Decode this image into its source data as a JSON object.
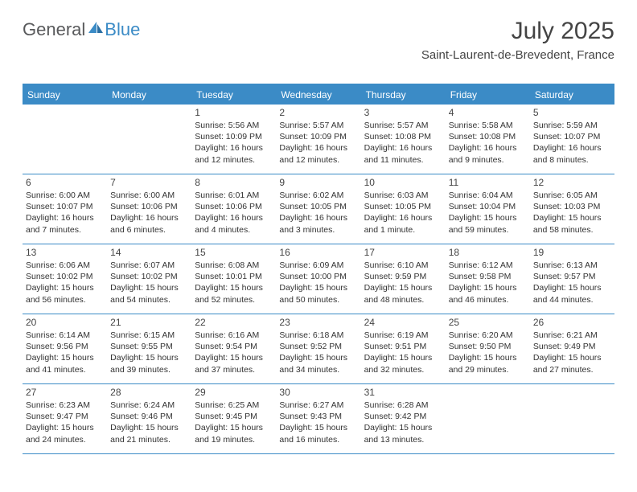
{
  "logo": {
    "part1": "General",
    "part2": "Blue"
  },
  "header": {
    "title": "July 2025",
    "subtitle": "Saint-Laurent-de-Brevedent, France"
  },
  "colors": {
    "accent": "#3b8bc6",
    "text": "#333333",
    "logo_gray": "#58595b",
    "background": "#ffffff"
  },
  "weekdays": [
    "Sunday",
    "Monday",
    "Tuesday",
    "Wednesday",
    "Thursday",
    "Friday",
    "Saturday"
  ],
  "weeks": [
    [
      null,
      null,
      {
        "n": "1",
        "sr": "5:56 AM",
        "ss": "10:09 PM",
        "dl": "16 hours and 12 minutes."
      },
      {
        "n": "2",
        "sr": "5:57 AM",
        "ss": "10:09 PM",
        "dl": "16 hours and 12 minutes."
      },
      {
        "n": "3",
        "sr": "5:57 AM",
        "ss": "10:08 PM",
        "dl": "16 hours and 11 minutes."
      },
      {
        "n": "4",
        "sr": "5:58 AM",
        "ss": "10:08 PM",
        "dl": "16 hours and 9 minutes."
      },
      {
        "n": "5",
        "sr": "5:59 AM",
        "ss": "10:07 PM",
        "dl": "16 hours and 8 minutes."
      }
    ],
    [
      {
        "n": "6",
        "sr": "6:00 AM",
        "ss": "10:07 PM",
        "dl": "16 hours and 7 minutes."
      },
      {
        "n": "7",
        "sr": "6:00 AM",
        "ss": "10:06 PM",
        "dl": "16 hours and 6 minutes."
      },
      {
        "n": "8",
        "sr": "6:01 AM",
        "ss": "10:06 PM",
        "dl": "16 hours and 4 minutes."
      },
      {
        "n": "9",
        "sr": "6:02 AM",
        "ss": "10:05 PM",
        "dl": "16 hours and 3 minutes."
      },
      {
        "n": "10",
        "sr": "6:03 AM",
        "ss": "10:05 PM",
        "dl": "16 hours and 1 minute."
      },
      {
        "n": "11",
        "sr": "6:04 AM",
        "ss": "10:04 PM",
        "dl": "15 hours and 59 minutes."
      },
      {
        "n": "12",
        "sr": "6:05 AM",
        "ss": "10:03 PM",
        "dl": "15 hours and 58 minutes."
      }
    ],
    [
      {
        "n": "13",
        "sr": "6:06 AM",
        "ss": "10:02 PM",
        "dl": "15 hours and 56 minutes."
      },
      {
        "n": "14",
        "sr": "6:07 AM",
        "ss": "10:02 PM",
        "dl": "15 hours and 54 minutes."
      },
      {
        "n": "15",
        "sr": "6:08 AM",
        "ss": "10:01 PM",
        "dl": "15 hours and 52 minutes."
      },
      {
        "n": "16",
        "sr": "6:09 AM",
        "ss": "10:00 PM",
        "dl": "15 hours and 50 minutes."
      },
      {
        "n": "17",
        "sr": "6:10 AM",
        "ss": "9:59 PM",
        "dl": "15 hours and 48 minutes."
      },
      {
        "n": "18",
        "sr": "6:12 AM",
        "ss": "9:58 PM",
        "dl": "15 hours and 46 minutes."
      },
      {
        "n": "19",
        "sr": "6:13 AM",
        "ss": "9:57 PM",
        "dl": "15 hours and 44 minutes."
      }
    ],
    [
      {
        "n": "20",
        "sr": "6:14 AM",
        "ss": "9:56 PM",
        "dl": "15 hours and 41 minutes."
      },
      {
        "n": "21",
        "sr": "6:15 AM",
        "ss": "9:55 PM",
        "dl": "15 hours and 39 minutes."
      },
      {
        "n": "22",
        "sr": "6:16 AM",
        "ss": "9:54 PM",
        "dl": "15 hours and 37 minutes."
      },
      {
        "n": "23",
        "sr": "6:18 AM",
        "ss": "9:52 PM",
        "dl": "15 hours and 34 minutes."
      },
      {
        "n": "24",
        "sr": "6:19 AM",
        "ss": "9:51 PM",
        "dl": "15 hours and 32 minutes."
      },
      {
        "n": "25",
        "sr": "6:20 AM",
        "ss": "9:50 PM",
        "dl": "15 hours and 29 minutes."
      },
      {
        "n": "26",
        "sr": "6:21 AM",
        "ss": "9:49 PM",
        "dl": "15 hours and 27 minutes."
      }
    ],
    [
      {
        "n": "27",
        "sr": "6:23 AM",
        "ss": "9:47 PM",
        "dl": "15 hours and 24 minutes."
      },
      {
        "n": "28",
        "sr": "6:24 AM",
        "ss": "9:46 PM",
        "dl": "15 hours and 21 minutes."
      },
      {
        "n": "29",
        "sr": "6:25 AM",
        "ss": "9:45 PM",
        "dl": "15 hours and 19 minutes."
      },
      {
        "n": "30",
        "sr": "6:27 AM",
        "ss": "9:43 PM",
        "dl": "15 hours and 16 minutes."
      },
      {
        "n": "31",
        "sr": "6:28 AM",
        "ss": "9:42 PM",
        "dl": "15 hours and 13 minutes."
      },
      null,
      null
    ]
  ],
  "labels": {
    "sunrise": "Sunrise:",
    "sunset": "Sunset:",
    "daylight": "Daylight:"
  }
}
